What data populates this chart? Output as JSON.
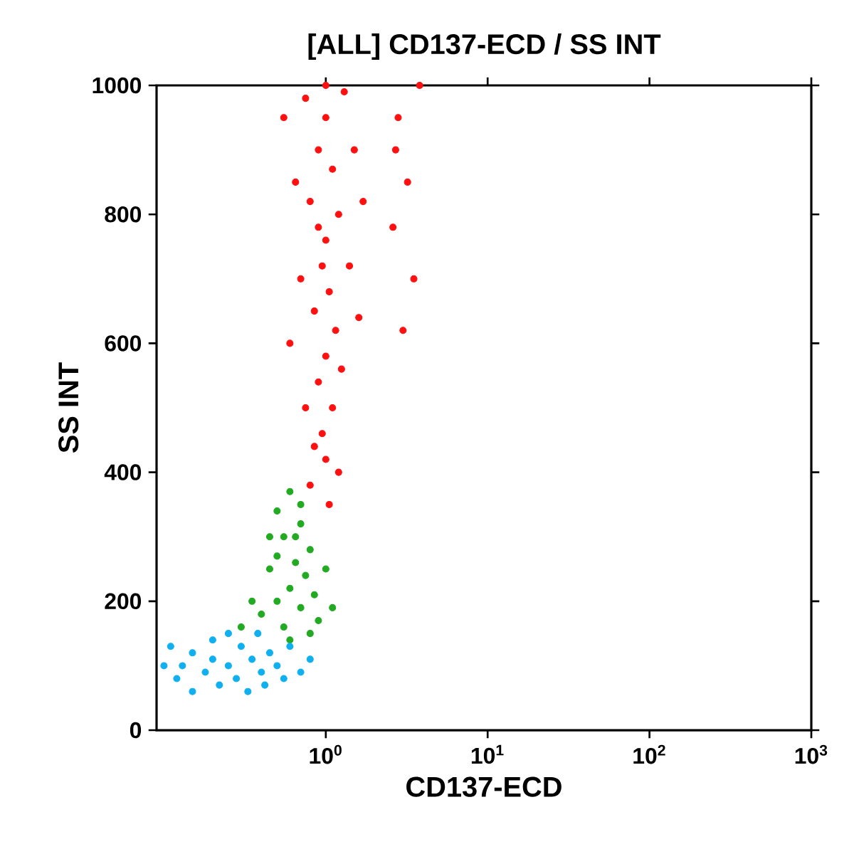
{
  "chart_data": {
    "type": "scatter",
    "title": "[ALL] CD137-ECD / SS INT",
    "xlabel": "CD137-ECD",
    "ylabel": "SS INT",
    "log": "x",
    "grid": false,
    "xlim": [
      0.09,
      1000
    ],
    "ylim": [
      0,
      1000
    ],
    "xticks": [
      {
        "value": 1,
        "label": "10$^{0}$"
      },
      {
        "value": 10,
        "label": "10$^{1}$"
      },
      {
        "value": 100,
        "label": "10$^{2}$"
      },
      {
        "value": 1000,
        "label": "10$^{3}$"
      }
    ],
    "yticks": [
      0,
      200,
      400,
      600,
      800,
      1000
    ],
    "series": [
      {
        "color": "#ff1010",
        "x": [
          1.0,
          0.9,
          1.1,
          0.8,
          1.2,
          1.0,
          0.95,
          1.05,
          0.85,
          1.15,
          1.0,
          0.9,
          1.1,
          0.95,
          1.0,
          0.8,
          1.2,
          0.7,
          1.4,
          0.65,
          1.5,
          0.75,
          1.3,
          1.0,
          0.6,
          1.6,
          1.25,
          0.75,
          1.05,
          0.9,
          2.8,
          3.2,
          2.6,
          3.5,
          3.0,
          2.7,
          3.8,
          0.55,
          1.7,
          0.85
        ],
        "values": [
          950,
          900,
          870,
          820,
          800,
          760,
          720,
          680,
          650,
          620,
          580,
          540,
          500,
          460,
          420,
          380,
          400,
          700,
          720,
          850,
          900,
          980,
          990,
          1000,
          600,
          640,
          560,
          500,
          350,
          780,
          950,
          850,
          780,
          700,
          620,
          900,
          1000,
          950,
          820,
          440
        ]
      },
      {
        "color": "#22aa22",
        "x": [
          0.6,
          0.5,
          0.7,
          0.55,
          0.8,
          0.65,
          0.45,
          0.75,
          0.6,
          0.5,
          0.85,
          0.7,
          0.4,
          0.55,
          0.9,
          0.35,
          0.65,
          0.7,
          1.0,
          0.3,
          0.45,
          0.8,
          0.6,
          0.5,
          1.1
        ],
        "values": [
          370,
          340,
          320,
          300,
          280,
          260,
          250,
          240,
          220,
          200,
          210,
          190,
          180,
          160,
          170,
          200,
          300,
          350,
          250,
          160,
          300,
          150,
          140,
          270,
          190
        ]
      },
      {
        "color": "#10b0f0",
        "x": [
          0.1,
          0.12,
          0.15,
          0.18,
          0.2,
          0.22,
          0.25,
          0.3,
          0.28,
          0.35,
          0.4,
          0.45,
          0.5,
          0.55,
          0.15,
          0.2,
          0.25,
          0.11,
          0.33,
          0.6,
          0.7,
          0.8,
          0.38,
          0.13,
          0.42
        ],
        "values": [
          100,
          80,
          120,
          90,
          110,
          70,
          100,
          130,
          80,
          110,
          90,
          120,
          100,
          80,
          60,
          140,
          150,
          130,
          60,
          130,
          90,
          110,
          150,
          100,
          70
        ]
      }
    ]
  }
}
